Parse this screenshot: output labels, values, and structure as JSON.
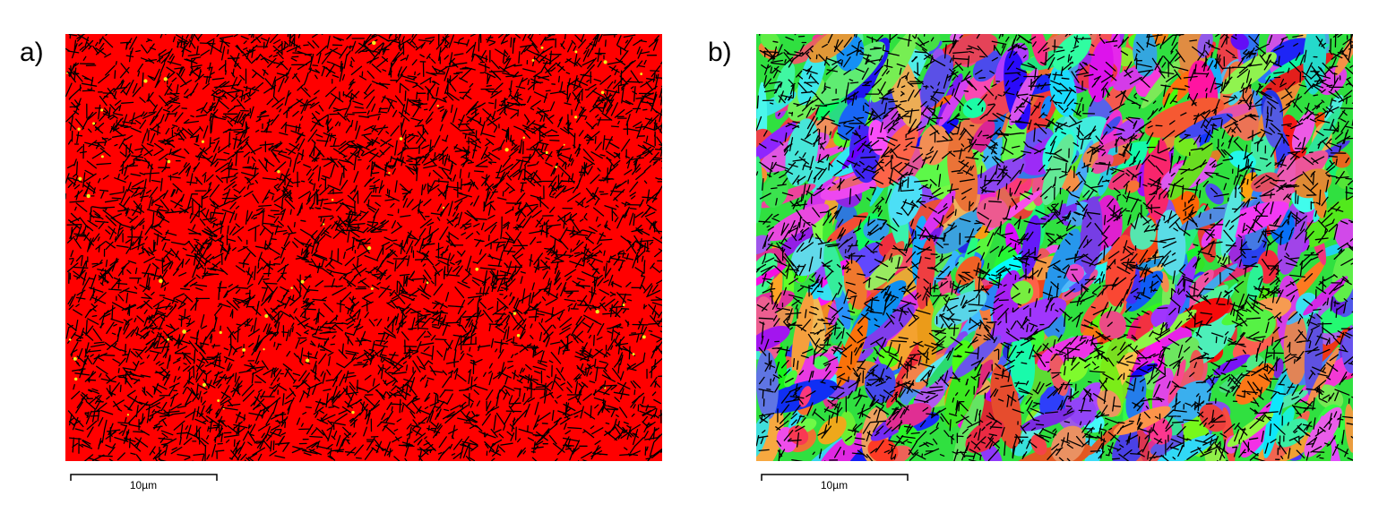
{
  "panels": [
    {
      "label": "a)",
      "scale_bar": "10µm"
    },
    {
      "label": "b)",
      "scale_bar": "10µm"
    }
  ]
}
